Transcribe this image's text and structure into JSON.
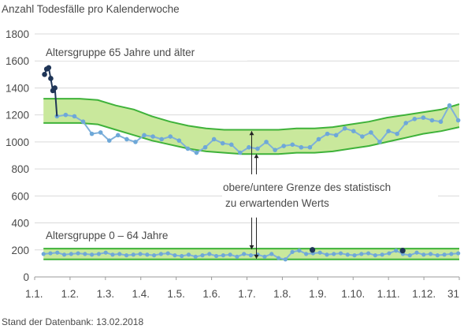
{
  "chart_data": {
    "type": "line",
    "title": "Anzahl Todesfälle pro Kalenderwoche",
    "footnote": "Stand der Datenbank: 13.02.2018",
    "ylim": [
      0,
      1800
    ],
    "yticks": [
      0,
      200,
      400,
      600,
      800,
      1000,
      1200,
      1400,
      1600,
      1800
    ],
    "xlim": [
      1,
      13
    ],
    "xtick_labels": [
      "1.1.",
      "1.2.",
      "1.3.",
      "1.4.",
      "1.5.",
      "1.6.",
      "1.7.",
      "1.8.",
      "1.9.",
      "1.10.",
      "1.11.",
      "1.12.",
      "31"
    ],
    "grid": true,
    "annotation": [
      "obere/untere Grenze des statistisch",
      "zu erwartenden Werts"
    ],
    "colors": {
      "line": "#7fb0da",
      "marker": "#6ea8d8",
      "recent_line": "#1f3557",
      "band_fill": "#c9e89c",
      "band_edge": "#3fb23a",
      "grid": "#d9d9d9"
    },
    "groups": [
      {
        "name": "Altersgruppe 65 Jahre und älter",
        "weekly_deaths": [
          1190,
          1200,
          1190,
          1150,
          1060,
          1070,
          1010,
          1050,
          1020,
          1000,
          1050,
          1040,
          1020,
          1040,
          1010,
          950,
          920,
          960,
          1020,
          990,
          980,
          920,
          960,
          950,
          1000,
          940,
          970,
          980,
          960,
          960,
          1020,
          1060,
          1050,
          1100,
          1080,
          1040,
          1070,
          1000,
          1080,
          1060,
          1140,
          1170,
          1180,
          1160,
          1150,
          1270,
          1160
        ],
        "recent_weeks": [
          1500,
          1540,
          1550,
          1470,
          1380,
          1400
        ],
        "expected_upper": [
          1320,
          1320,
          1320,
          1310,
          1270,
          1240,
          1190,
          1150,
          1120,
          1100,
          1090,
          1090,
          1090,
          1090,
          1100,
          1100,
          1110,
          1130,
          1150,
          1180,
          1200,
          1220,
          1240,
          1280
        ],
        "expected_lower": [
          1140,
          1140,
          1140,
          1130,
          1090,
          1050,
          1010,
          980,
          950,
          930,
          920,
          910,
          910,
          910,
          920,
          920,
          930,
          950,
          970,
          1000,
          1030,
          1060,
          1080,
          1110
        ]
      },
      {
        "name": "Altersgruppe 0 – 64 Jahre",
        "weekly_deaths": [
          170,
          175,
          180,
          165,
          170,
          175,
          170,
          165,
          170,
          180,
          165,
          170,
          160,
          165,
          170,
          165,
          160,
          170,
          175,
          160,
          155,
          165,
          150,
          160,
          170,
          155,
          160,
          165,
          150,
          170,
          160,
          165,
          150,
          170,
          140,
          130,
          185,
          195,
          170,
          175,
          180,
          165,
          170,
          175,
          165,
          160,
          170,
          175,
          160,
          165,
          175,
          195,
          170,
          160,
          180,
          165,
          170,
          160,
          165,
          170,
          175
        ],
        "highlighted_weeks": [
          {
            "x": 8.85,
            "value": 200
          },
          {
            "x": 11.4,
            "value": 195
          }
        ],
        "expected_upper": [
          210,
          210,
          210,
          210,
          210,
          210,
          210,
          210,
          210,
          210,
          210,
          210,
          210,
          210
        ],
        "expected_lower": [
          130,
          130,
          130,
          130,
          130,
          130,
          130,
          130,
          130,
          130,
          130,
          130,
          130,
          130
        ]
      }
    ]
  }
}
